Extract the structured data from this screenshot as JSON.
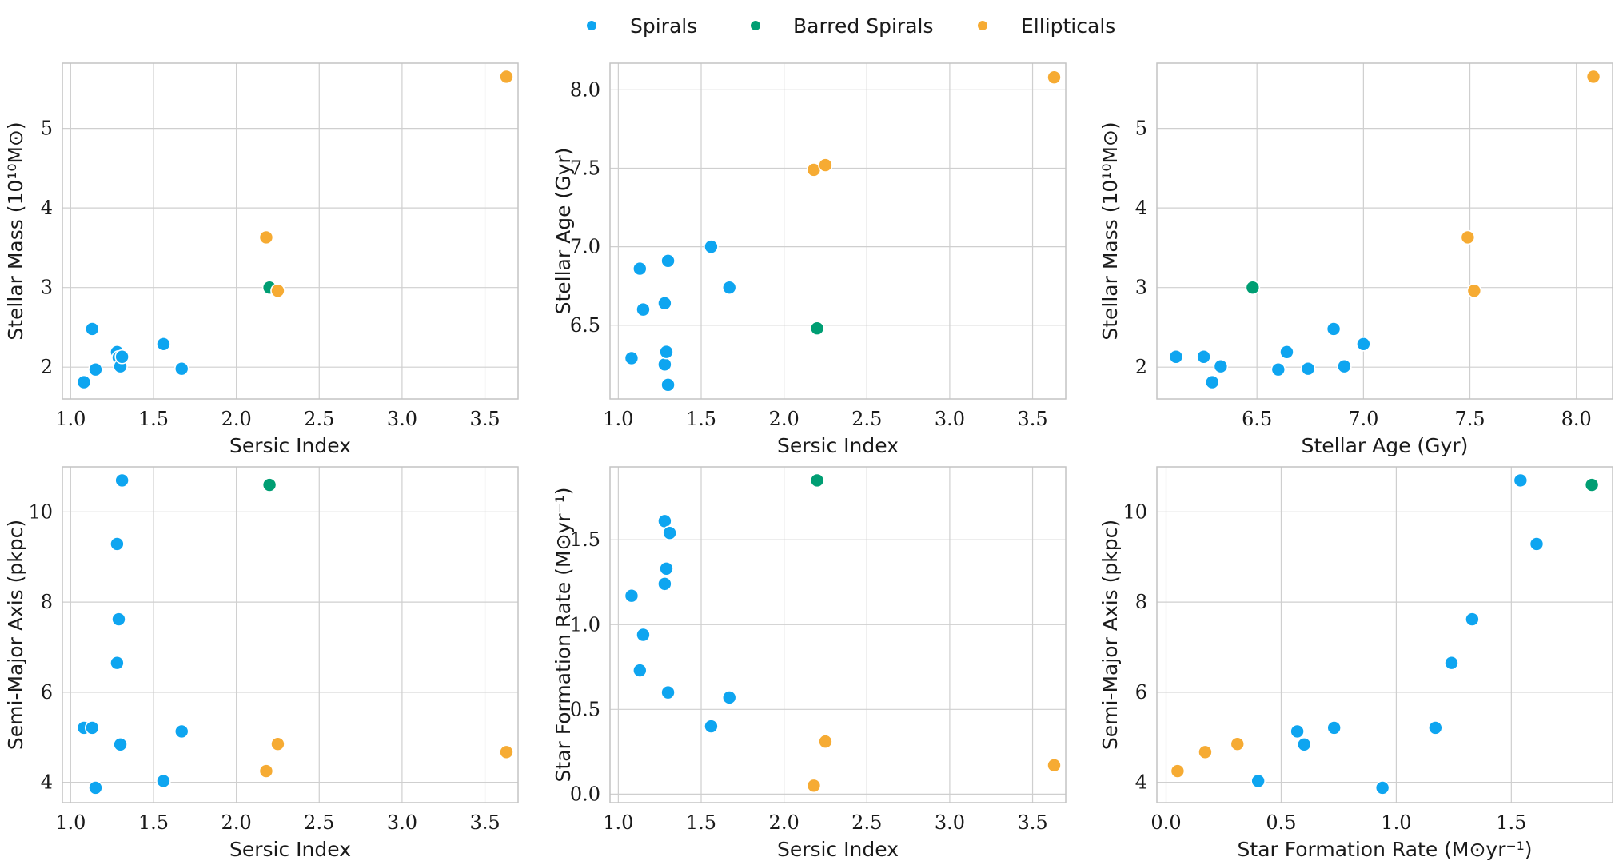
{
  "legend": {
    "placement": "top-center",
    "items": [
      {
        "label": "Spirals",
        "color": "#0ea5f0"
      },
      {
        "label": "Barred Spirals",
        "color": "#009e73"
      },
      {
        "label": "Ellipticals",
        "color": "#f6ab33"
      }
    ]
  },
  "chart_data": [
    {
      "type": "scatter",
      "xlabel": "Sersic Index",
      "ylabel": "Stellar Mass (10¹⁰M⊙)",
      "xlim": [
        0.95,
        3.7
      ],
      "ylim": [
        1.6,
        5.82
      ],
      "xticks": [
        {
          "v": 1.0,
          "label": "1.0"
        },
        {
          "v": 1.5,
          "label": "1.5"
        },
        {
          "v": 2.0,
          "label": "2.0"
        },
        {
          "v": 2.5,
          "label": "2.5"
        },
        {
          "v": 3.0,
          "label": "3.0"
        },
        {
          "v": 3.5,
          "label": "3.5"
        }
      ],
      "yticks": [
        {
          "v": 2,
          "label": "2"
        },
        {
          "v": 3,
          "label": "3"
        },
        {
          "v": 4,
          "label": "4"
        },
        {
          "v": 5,
          "label": "5"
        }
      ],
      "grid": true,
      "series": [
        {
          "name": "Spirals",
          "color": "#0ea5f0",
          "points": [
            [
              1.08,
              1.81
            ],
            [
              1.13,
              2.48
            ],
            [
              1.15,
              1.97
            ],
            [
              1.28,
              2.19
            ],
            [
              1.29,
              2.12
            ],
            [
              1.3,
              2.01
            ],
            [
              1.31,
              2.13
            ],
            [
              1.56,
              2.29
            ],
            [
              1.67,
              1.98
            ]
          ]
        },
        {
          "name": "Barred Spirals",
          "color": "#009e73",
          "points": [
            [
              2.2,
              3.0
            ]
          ]
        },
        {
          "name": "Ellipticals",
          "color": "#f6ab33",
          "points": [
            [
              2.18,
              3.63
            ],
            [
              2.25,
              2.96
            ],
            [
              3.63,
              5.65
            ]
          ]
        }
      ]
    },
    {
      "type": "scatter",
      "xlabel": "Sersic Index",
      "ylabel": "Stellar Age (Gyr)",
      "xlim": [
        0.95,
        3.7
      ],
      "ylim": [
        6.03,
        8.17
      ],
      "xticks": [
        {
          "v": 1.0,
          "label": "1.0"
        },
        {
          "v": 1.5,
          "label": "1.5"
        },
        {
          "v": 2.0,
          "label": "2.0"
        },
        {
          "v": 2.5,
          "label": "2.5"
        },
        {
          "v": 3.0,
          "label": "3.0"
        },
        {
          "v": 3.5,
          "label": "3.5"
        }
      ],
      "yticks": [
        {
          "v": 6.5,
          "label": "6.5"
        },
        {
          "v": 7.0,
          "label": "7.0"
        },
        {
          "v": 7.5,
          "label": "7.5"
        },
        {
          "v": 8.0,
          "label": "8.0"
        }
      ],
      "grid": true,
      "series": [
        {
          "name": "Spirals",
          "color": "#0ea5f0",
          "points": [
            [
              1.08,
              6.29
            ],
            [
              1.13,
              6.86
            ],
            [
              1.15,
              6.6
            ],
            [
              1.28,
              6.64
            ],
            [
              1.28,
              6.25
            ],
            [
              1.29,
              6.33
            ],
            [
              1.3,
              6.91
            ],
            [
              1.3,
              6.12
            ],
            [
              1.56,
              7.0
            ],
            [
              1.67,
              6.74
            ]
          ]
        },
        {
          "name": "Barred Spirals",
          "color": "#009e73",
          "points": [
            [
              2.2,
              6.48
            ]
          ]
        },
        {
          "name": "Ellipticals",
          "color": "#f6ab33",
          "points": [
            [
              2.18,
              7.49
            ],
            [
              2.25,
              7.52
            ],
            [
              3.63,
              8.08
            ]
          ]
        }
      ]
    },
    {
      "type": "scatter",
      "xlabel": "Stellar Age (Gyr)",
      "ylabel": "Stellar Mass (10¹⁰M⊙)",
      "xlim": [
        6.03,
        8.17
      ],
      "ylim": [
        1.6,
        5.82
      ],
      "xticks": [
        {
          "v": 6.5,
          "label": "6.5"
        },
        {
          "v": 7.0,
          "label": "7.0"
        },
        {
          "v": 7.5,
          "label": "7.5"
        },
        {
          "v": 8.0,
          "label": "8.0"
        }
      ],
      "yticks": [
        {
          "v": 2,
          "label": "2"
        },
        {
          "v": 3,
          "label": "3"
        },
        {
          "v": 4,
          "label": "4"
        },
        {
          "v": 5,
          "label": "5"
        }
      ],
      "grid": true,
      "series": [
        {
          "name": "Spirals",
          "color": "#0ea5f0",
          "points": [
            [
              6.12,
              2.13
            ],
            [
              6.25,
              2.13
            ],
            [
              6.29,
              1.81
            ],
            [
              6.33,
              2.01
            ],
            [
              6.6,
              1.97
            ],
            [
              6.64,
              2.19
            ],
            [
              6.74,
              1.98
            ],
            [
              6.86,
              2.48
            ],
            [
              6.91,
              2.01
            ],
            [
              7.0,
              2.29
            ]
          ]
        },
        {
          "name": "Barred Spirals",
          "color": "#009e73",
          "points": [
            [
              6.48,
              3.0
            ]
          ]
        },
        {
          "name": "Ellipticals",
          "color": "#f6ab33",
          "points": [
            [
              7.49,
              3.63
            ],
            [
              7.52,
              2.96
            ],
            [
              8.08,
              5.65
            ]
          ]
        }
      ]
    },
    {
      "type": "scatter",
      "xlabel": "Sersic Index",
      "ylabel": "Semi-Major Axis (pkpc)",
      "xlim": [
        0.95,
        3.7
      ],
      "ylim": [
        3.55,
        11.0
      ],
      "xticks": [
        {
          "v": 1.0,
          "label": "1.0"
        },
        {
          "v": 1.5,
          "label": "1.5"
        },
        {
          "v": 2.0,
          "label": "2.0"
        },
        {
          "v": 2.5,
          "label": "2.5"
        },
        {
          "v": 3.0,
          "label": "3.0"
        },
        {
          "v": 3.5,
          "label": "3.5"
        }
      ],
      "yticks": [
        {
          "v": 4,
          "label": "4"
        },
        {
          "v": 6,
          "label": "6"
        },
        {
          "v": 8,
          "label": "8"
        },
        {
          "v": 10,
          "label": "10"
        }
      ],
      "grid": true,
      "series": [
        {
          "name": "Spirals",
          "color": "#0ea5f0",
          "points": [
            [
              1.08,
              5.21
            ],
            [
              1.13,
              5.21
            ],
            [
              1.15,
              3.88
            ],
            [
              1.28,
              9.29
            ],
            [
              1.29,
              7.62
            ],
            [
              1.28,
              6.65
            ],
            [
              1.3,
              4.84
            ],
            [
              1.31,
              10.7
            ],
            [
              1.56,
              4.03
            ],
            [
              1.67,
              5.13
            ]
          ]
        },
        {
          "name": "Barred Spirals",
          "color": "#009e73",
          "points": [
            [
              2.2,
              10.6
            ]
          ]
        },
        {
          "name": "Ellipticals",
          "color": "#f6ab33",
          "points": [
            [
              2.18,
              4.25
            ],
            [
              2.25,
              4.85
            ],
            [
              3.63,
              4.67
            ]
          ]
        }
      ]
    },
    {
      "type": "scatter",
      "xlabel": "Sersic Index",
      "ylabel": "Star Formation Rate (M⊙yr⁻¹)",
      "xlim": [
        0.95,
        3.7
      ],
      "ylim": [
        -0.05,
        1.93
      ],
      "xticks": [
        {
          "v": 1.0,
          "label": "1.0"
        },
        {
          "v": 1.5,
          "label": "1.5"
        },
        {
          "v": 2.0,
          "label": "2.0"
        },
        {
          "v": 2.5,
          "label": "2.5"
        },
        {
          "v": 3.0,
          "label": "3.0"
        },
        {
          "v": 3.5,
          "label": "3.5"
        }
      ],
      "yticks": [
        {
          "v": 0.0,
          "label": "0.0"
        },
        {
          "v": 0.5,
          "label": "0.5"
        },
        {
          "v": 1.0,
          "label": "1.0"
        },
        {
          "v": 1.5,
          "label": "1.5"
        }
      ],
      "grid": true,
      "series": [
        {
          "name": "Spirals",
          "color": "#0ea5f0",
          "points": [
            [
              1.08,
              1.17
            ],
            [
              1.13,
              0.73
            ],
            [
              1.15,
              0.94
            ],
            [
              1.28,
              1.61
            ],
            [
              1.31,
              1.54
            ],
            [
              1.29,
              1.33
            ],
            [
              1.28,
              1.24
            ],
            [
              1.3,
              0.6
            ],
            [
              1.56,
              0.4
            ],
            [
              1.67,
              0.57
            ]
          ]
        },
        {
          "name": "Barred Spirals",
          "color": "#009e73",
          "points": [
            [
              2.2,
              1.85
            ]
          ]
        },
        {
          "name": "Ellipticals",
          "color": "#f6ab33",
          "points": [
            [
              2.18,
              0.05
            ],
            [
              2.25,
              0.31
            ],
            [
              3.63,
              0.17
            ]
          ]
        }
      ]
    },
    {
      "type": "scatter",
      "xlabel": "Star Formation Rate (M⊙yr⁻¹)",
      "ylabel": "Semi-Major Axis (pkpc)",
      "xlim": [
        -0.04,
        1.94
      ],
      "ylim": [
        3.55,
        11.0
      ],
      "xticks": [
        {
          "v": 0.0,
          "label": "0.0"
        },
        {
          "v": 0.5,
          "label": "0.5"
        },
        {
          "v": 1.0,
          "label": "1.0"
        },
        {
          "v": 1.5,
          "label": "1.5"
        }
      ],
      "yticks": [
        {
          "v": 4,
          "label": "4"
        },
        {
          "v": 6,
          "label": "6"
        },
        {
          "v": 8,
          "label": "8"
        },
        {
          "v": 10,
          "label": "10"
        }
      ],
      "grid": true,
      "series": [
        {
          "name": "Spirals",
          "color": "#0ea5f0",
          "points": [
            [
              0.4,
              4.03
            ],
            [
              0.57,
              5.13
            ],
            [
              0.6,
              4.84
            ],
            [
              0.73,
              5.21
            ],
            [
              0.94,
              3.88
            ],
            [
              1.17,
              5.21
            ],
            [
              1.24,
              6.65
            ],
            [
              1.33,
              7.62
            ],
            [
              1.54,
              10.7
            ],
            [
              1.61,
              9.29
            ]
          ]
        },
        {
          "name": "Barred Spirals",
          "color": "#009e73",
          "points": [
            [
              1.85,
              10.6
            ]
          ]
        },
        {
          "name": "Ellipticals",
          "color": "#f6ab33",
          "points": [
            [
              0.05,
              4.25
            ],
            [
              0.17,
              4.67
            ],
            [
              0.31,
              4.85
            ]
          ]
        }
      ]
    }
  ]
}
